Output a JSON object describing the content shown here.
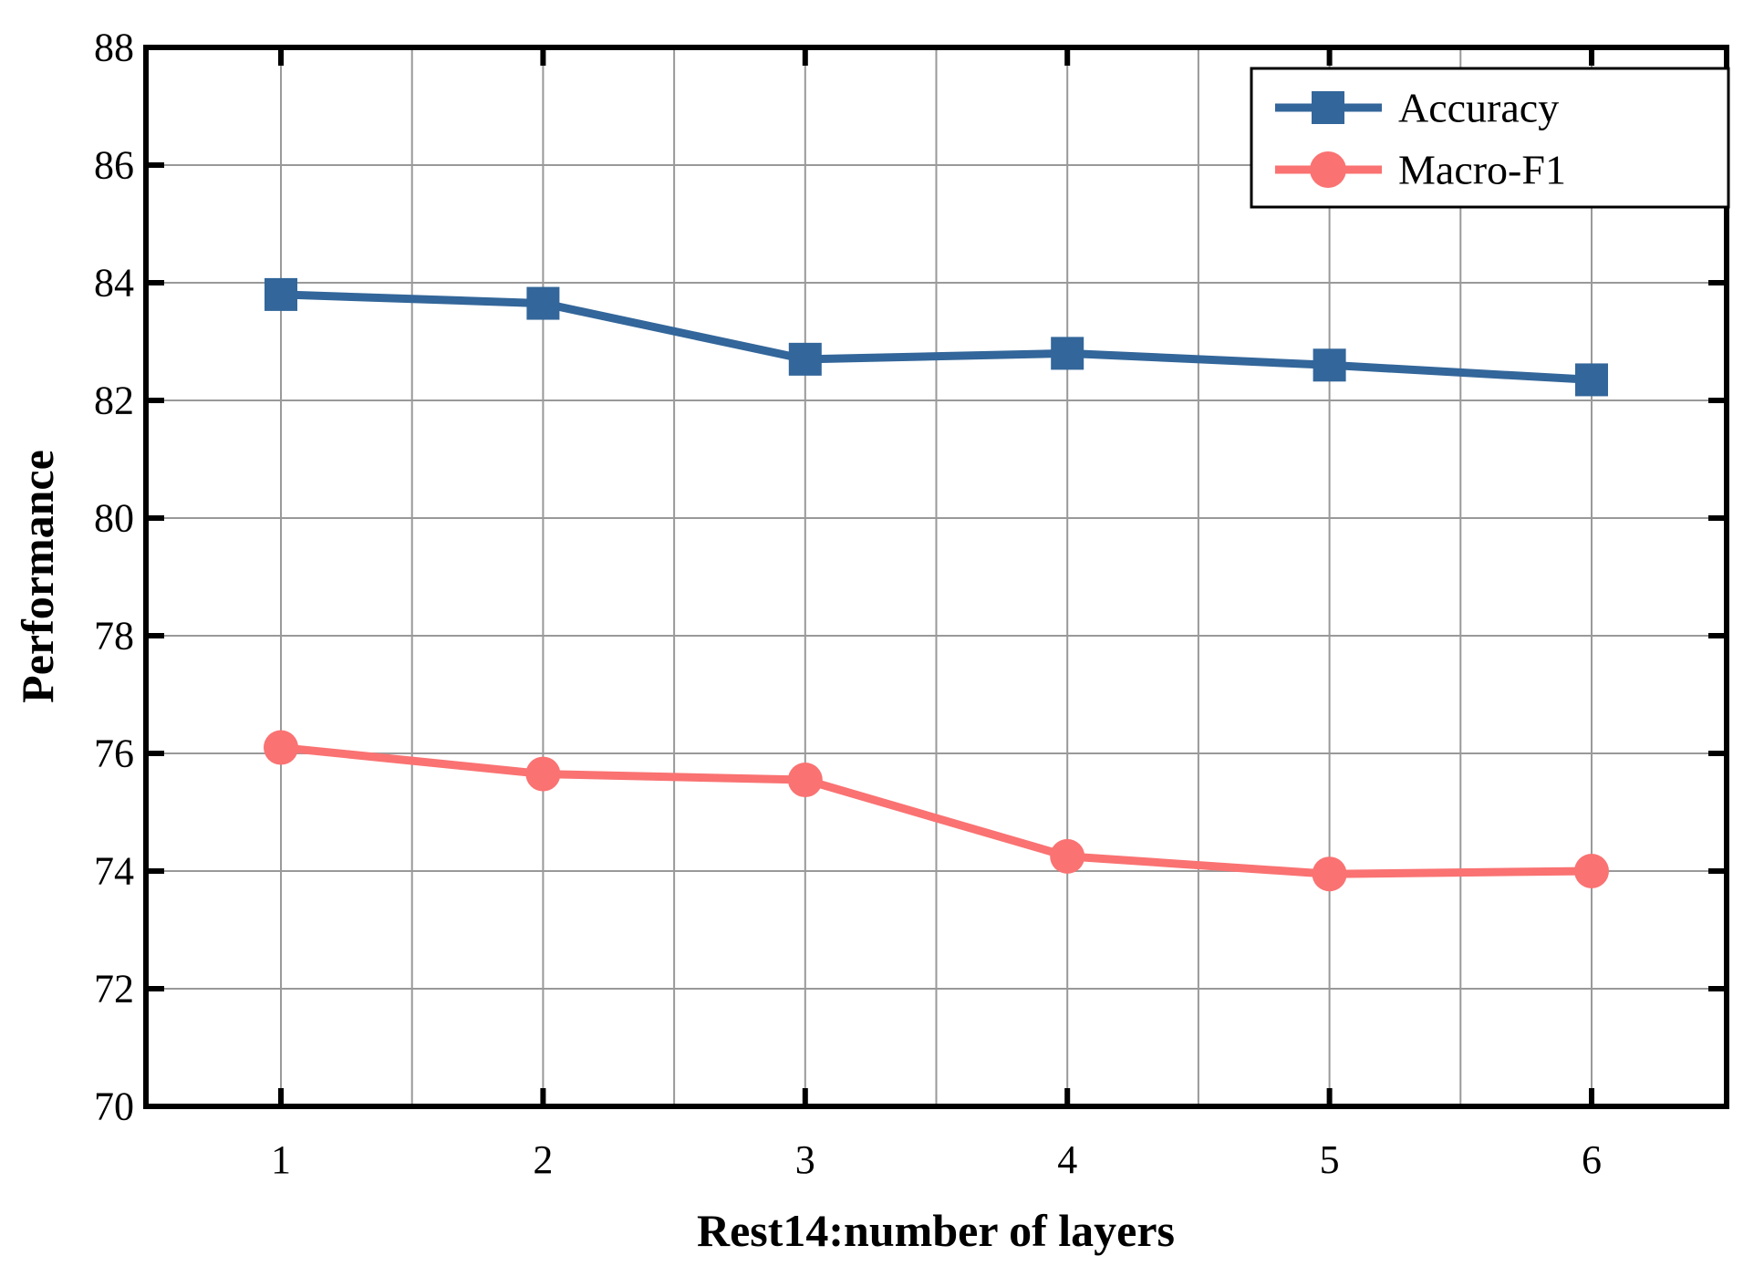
{
  "chart_data": {
    "type": "line",
    "title": "",
    "xlabel": "Rest14:number of layers",
    "ylabel": "Performance",
    "x": [
      1,
      2,
      3,
      4,
      5,
      6
    ],
    "series": [
      {
        "name": "Accuracy",
        "marker": "square",
        "color": "#33669A",
        "values": [
          83.8,
          83.65,
          82.7,
          82.8,
          82.6,
          82.35
        ]
      },
      {
        "name": "Macro-F1",
        "marker": "circle",
        "color": "#FA7272",
        "values": [
          76.1,
          75.65,
          75.55,
          74.25,
          73.95,
          74.0
        ]
      }
    ],
    "xlim": [
      0.485,
      6.515
    ],
    "ylim": [
      70,
      88
    ],
    "x_major_ticks": [
      1,
      2,
      3,
      4,
      5,
      6
    ],
    "x_tick_labels": [
      "1",
      "2",
      "3",
      "4",
      "5",
      "6"
    ],
    "y_major_ticks": [
      70,
      72,
      74,
      76,
      78,
      80,
      82,
      84,
      86,
      88
    ],
    "y_tick_labels": [
      "70",
      "72",
      "74",
      "76",
      "78",
      "80",
      "82",
      "84",
      "86",
      "88"
    ],
    "x_minor_gridlines": [
      1.5,
      2.5,
      3.5,
      4.5,
      5.5
    ],
    "grid": true,
    "grid_color": "#999999",
    "axis_color": "#000000",
    "legend_position": "upper right",
    "legend_entries": [
      "Accuracy",
      "Macro-F1"
    ]
  }
}
